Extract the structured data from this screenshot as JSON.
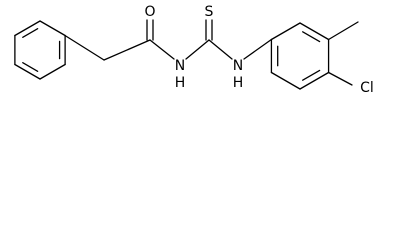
{
  "labels": {
    "carbonyl_oxygen": "O",
    "thiocarbonyl_sulfur": "S",
    "amide_nh": {
      "n": "N",
      "h": "H"
    },
    "aryl_nh": {
      "n": "N",
      "h": "H"
    },
    "chlorine": "Cl"
  }
}
